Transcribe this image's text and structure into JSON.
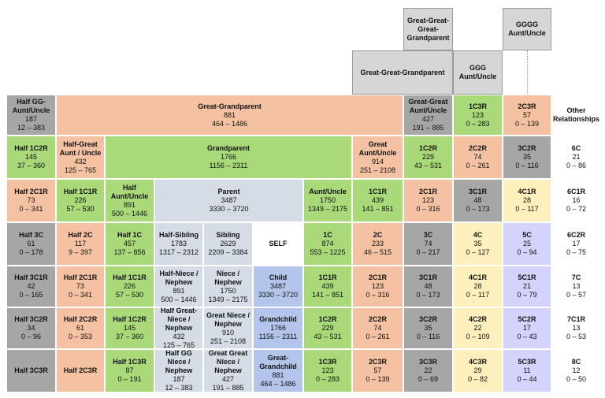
{
  "colors": {
    "gray": "#d6d6d6",
    "dgray": "#a6a6a6",
    "orange": "#f4c2a2",
    "green": "#a9d979",
    "slate": "#d5dce6",
    "blue": "#b4c5eb",
    "yellow": "#fdf0bd",
    "lav": "#d3d3fb",
    "white": "#ffffff"
  },
  "cells": [
    {
      "id": "great-great-great-grandparent",
      "name": "Great-Great-Great-Grandparent",
      "color": "gray"
    },
    {
      "id": "gggg-aunt-uncle",
      "name": "GGGG Aunt/Uncle",
      "color": "gray"
    },
    {
      "id": "great-great-grandparent",
      "name": "Great-Great-Grandparent",
      "color": "gray"
    },
    {
      "id": "ggg-aunt-uncle",
      "name": "GGG Aunt/Uncle",
      "color": "gray"
    },
    {
      "id": "half-gg-aunt-uncle",
      "name": "Half GG-Aunt/Uncle",
      "value": "187",
      "range": "12 – 383",
      "color": "dgray"
    },
    {
      "id": "great-grandparent",
      "name": "Great-Grandparent",
      "value": "881",
      "range": "464 – 1486",
      "color": "orange"
    },
    {
      "id": "great-great-aunt-uncle",
      "name": "Great-Great Aunt/Uncle",
      "value": "427",
      "range": "191 – 885",
      "color": "dgray"
    },
    {
      "id": "1c3r",
      "name": "1C3R",
      "value": "123",
      "range": "0 – 283",
      "color": "green"
    },
    {
      "id": "2c3r",
      "name": "2C3R",
      "value": "57",
      "range": "0 – 139",
      "color": "orange"
    },
    {
      "id": "other-relationships",
      "name": "Other Relationships",
      "color": "white"
    },
    {
      "id": "half-1c2r",
      "name": "Half 1C2R",
      "value": "145",
      "range": "37 – 360",
      "color": "green"
    },
    {
      "id": "half-great-aunt-uncle",
      "name": "Half-Great Aunt / Uncle",
      "value": "432",
      "range": "125 – 765",
      "color": "orange"
    },
    {
      "id": "grandparent",
      "name": "Grandparent",
      "value": "1766",
      "range": "1156 – 2311",
      "color": "green"
    },
    {
      "id": "great-aunt-uncle",
      "name": "Great Aunt/Uncle",
      "value": "914",
      "range": "251 – 2108",
      "color": "orange"
    },
    {
      "id": "1c2r",
      "name": "1C2R",
      "value": "229",
      "range": "43 – 531",
      "color": "green"
    },
    {
      "id": "2c2r",
      "name": "2C2R",
      "value": "74",
      "range": "0 – 261",
      "color": "orange"
    },
    {
      "id": "3c2r",
      "name": "3C2R",
      "value": "35",
      "range": "0 – 116",
      "color": "dgray"
    },
    {
      "id": "6c",
      "name": "6C",
      "value": "21",
      "range": "0 – 86",
      "color": "white"
    },
    {
      "id": "half-2c1r",
      "name": "Half 2C1R",
      "value": "73",
      "range": "0 – 341",
      "color": "orange"
    },
    {
      "id": "half-1c1r",
      "name": "Half 1C1R",
      "value": "226",
      "range": "57 – 530",
      "color": "green"
    },
    {
      "id": "half-aunt-uncle",
      "name": "Half Aunt/Uncle",
      "value": "891",
      "range": "500 – 1446",
      "color": "green"
    },
    {
      "id": "parent",
      "name": "Parent",
      "value": "3487",
      "range": "3330 – 3720",
      "color": "slate"
    },
    {
      "id": "aunt-uncle",
      "name": "Aunt/Uncle",
      "value": "1750",
      "range": "1349 – 2175",
      "color": "green"
    },
    {
      "id": "1c1r",
      "name": "1C1R",
      "value": "439",
      "range": "141 – 851",
      "color": "green"
    },
    {
      "id": "2c1r",
      "name": "2C1R",
      "value": "123",
      "range": "0 – 316",
      "color": "orange"
    },
    {
      "id": "3c1r",
      "name": "3C1R",
      "value": "48",
      "range": "0 – 173",
      "color": "dgray"
    },
    {
      "id": "4c1r",
      "name": "4C1R",
      "value": "28",
      "range": "0 – 117",
      "color": "yellow"
    },
    {
      "id": "6c1r",
      "name": "6C1R",
      "value": "16",
      "range": "0 – 72",
      "color": "white"
    },
    {
      "id": "half-3c",
      "name": "Half 3C",
      "value": "61",
      "range": "0 – 178",
      "color": "dgray"
    },
    {
      "id": "half-2c",
      "name": "Half 2C",
      "value": "117",
      "range": "9 – 397",
      "color": "orange"
    },
    {
      "id": "half-1c",
      "name": "Half 1C",
      "value": "457",
      "range": "137 – 856",
      "color": "green"
    },
    {
      "id": "half-sibling",
      "name": "Half-Sibling",
      "value": "1783",
      "range": "1317 – 2312",
      "color": "slate"
    },
    {
      "id": "sibling",
      "name": "Sibling",
      "value": "2629",
      "range": "2209 – 3384",
      "color": "slate"
    },
    {
      "id": "self",
      "name": "SELF",
      "color": "white"
    },
    {
      "id": "1c",
      "name": "1C",
      "value": "874",
      "range": "553 – 1225",
      "color": "green"
    },
    {
      "id": "2c",
      "name": "2C",
      "value": "233",
      "range": "46 – 515",
      "color": "orange"
    },
    {
      "id": "3c",
      "name": "3C",
      "value": "74",
      "range": "0 – 217",
      "color": "dgray"
    },
    {
      "id": "4c",
      "name": "4C",
      "value": "35",
      "range": "0 – 127",
      "color": "yellow"
    },
    {
      "id": "5c",
      "name": "5C",
      "value": "25",
      "range": "0 – 94",
      "color": "lav"
    },
    {
      "id": "6c2r",
      "name": "6C2R",
      "value": "17",
      "range": "0 – 75",
      "color": "white"
    },
    {
      "id": "half-3c1r",
      "name": "Half 3C1R",
      "value": "42",
      "range": "0 – 165",
      "color": "dgray"
    },
    {
      "id": "half-2c1r-b",
      "name": "Half 2C1R",
      "value": "73",
      "range": "0 – 341",
      "color": "orange"
    },
    {
      "id": "half-1c1r-b",
      "name": "Half 1C1R",
      "value": "226",
      "range": "57 – 530",
      "color": "green"
    },
    {
      "id": "half-niece-nephew",
      "name": "Half-Niece / Nephew",
      "value": "891",
      "range": "500 – 1446",
      "color": "slate"
    },
    {
      "id": "niece-nephew",
      "name": "Niece / Nephew",
      "value": "1750",
      "range": "1349 – 2175",
      "color": "slate"
    },
    {
      "id": "child",
      "name": "Child",
      "value": "3487",
      "range": "3330 – 3720",
      "color": "blue"
    },
    {
      "id": "1c1r-b",
      "name": "1C1R",
      "value": "439",
      "range": "141 – 851",
      "color": "green"
    },
    {
      "id": "2c1r-b",
      "name": "2C1R",
      "value": "123",
      "range": "0 – 316",
      "color": "orange"
    },
    {
      "id": "3c1r-b",
      "name": "3C1R",
      "value": "48",
      "range": "0 – 173",
      "color": "dgray"
    },
    {
      "id": "4c1r-b",
      "name": "4C1R",
      "value": "28",
      "range": "0 – 117",
      "color": "yellow"
    },
    {
      "id": "5c1r",
      "name": "5C1R",
      "value": "21",
      "range": "0 – 79",
      "color": "lav"
    },
    {
      "id": "7c",
      "name": "7C",
      "value": "13",
      "range": "0 – 57",
      "color": "white"
    },
    {
      "id": "half-3c2r",
      "name": "Half 3C2R",
      "value": "34",
      "range": "0 – 96",
      "color": "dgray"
    },
    {
      "id": "half-2c2r",
      "name": "Half 2C2R",
      "value": "61",
      "range": "0 – 353",
      "color": "orange"
    },
    {
      "id": "half-1c2r-b",
      "name": "Half 1C2R",
      "value": "145",
      "range": "37 – 360",
      "color": "green"
    },
    {
      "id": "half-great-niece-nephew",
      "name": "Half Great-Niece / Nephew",
      "value": "432",
      "range": "125 – 765",
      "color": "slate"
    },
    {
      "id": "great-niece-nephew",
      "name": "Great Niece / Nephew",
      "value": "910",
      "range": "251 – 2108",
      "color": "slate"
    },
    {
      "id": "grandchild",
      "name": "Grandchild",
      "value": "1766",
      "range": "1156 – 2311",
      "color": "blue"
    },
    {
      "id": "1c2r-b",
      "name": "1C2R",
      "value": "229",
      "range": "43 – 531",
      "color": "green"
    },
    {
      "id": "2c2r-b",
      "name": "2C2R",
      "value": "74",
      "range": "0 – 261",
      "color": "orange"
    },
    {
      "id": "3c2r-b",
      "name": "3C2R",
      "value": "35",
      "range": "0 – 116",
      "color": "dgray"
    },
    {
      "id": "4c2r",
      "name": "4C2R",
      "value": "22",
      "range": "0 – 109",
      "color": "yellow"
    },
    {
      "id": "5c2r",
      "name": "5C2R",
      "value": "17",
      "range": "0 – 43",
      "color": "lav"
    },
    {
      "id": "7c1r",
      "name": "7C1R",
      "value": "13",
      "range": "0 – 53",
      "color": "white"
    },
    {
      "id": "half-3c3r",
      "name": "Half 3C3R",
      "color": "dgray"
    },
    {
      "id": "half-2c3r",
      "name": "Half 2C3R",
      "color": "orange"
    },
    {
      "id": "half-1c3r",
      "name": "Half 1C3R",
      "value": "87",
      "range": "0 – 191",
      "color": "green"
    },
    {
      "id": "half-gg-niece-nephew",
      "name": "Half GG Niece / Nephew",
      "value": "187",
      "range": "12 – 383",
      "color": "slate"
    },
    {
      "id": "great-great-niece-nephew",
      "name": "Great Great Niece / Nephew",
      "value": "427",
      "range": "191 – 885",
      "color": "slate"
    },
    {
      "id": "great-grandchild",
      "name": "Great-Grandchild",
      "value": "881",
      "range": "464 – 1486",
      "color": "blue"
    },
    {
      "id": "1c3r-b",
      "name": "1C3R",
      "value": "123",
      "range": "0 – 283",
      "color": "green"
    },
    {
      "id": "2c3r-b",
      "name": "2C3R",
      "value": "57",
      "range": "0 – 139",
      "color": "orange"
    },
    {
      "id": "3c3r",
      "name": "3C3R",
      "value": "22",
      "range": "0 – 69",
      "color": "dgray"
    },
    {
      "id": "4c3r",
      "name": "4C3R",
      "value": "29",
      "range": "0 – 82",
      "color": "yellow"
    },
    {
      "id": "5c3r",
      "name": "5C3R",
      "value": "11",
      "range": "0 – 44",
      "color": "lav"
    },
    {
      "id": "8c",
      "name": "8C",
      "value": "12",
      "range": "0 – 50",
      "color": "white"
    }
  ]
}
